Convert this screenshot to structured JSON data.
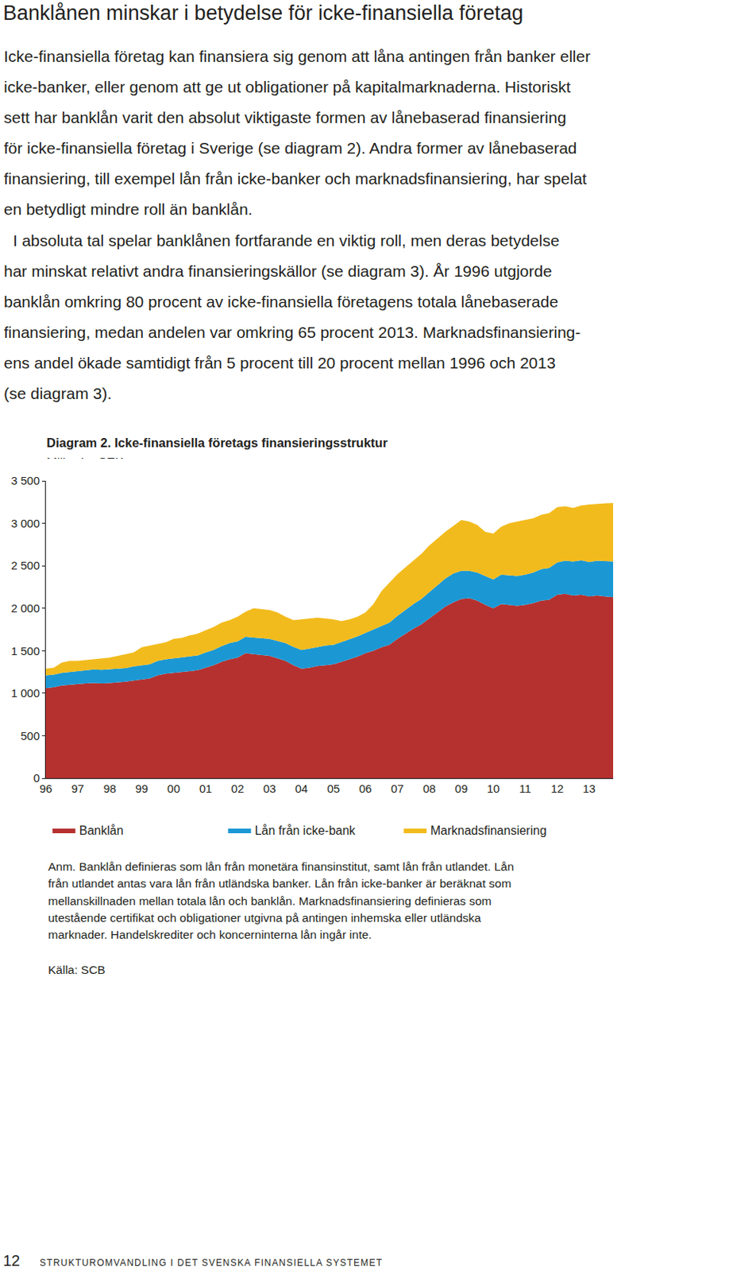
{
  "heading": "Banklånen minskar i betydelse för icke-finansiella företag",
  "paragraphs": [
    [
      "Icke-finansiella företag kan finansiera sig genom att låna antingen från banker eller",
      "icke-banker, eller genom att ge ut obligationer på kapitalmarknaderna. Historiskt",
      "sett har banklån varit den absolut viktigaste formen av lånebaserad finansiering",
      "för icke-finansiella företag i Sverige (se diagram 2). Andra former av lånebaserad",
      "finansiering, till exempel lån från icke-banker och marknadsfinansiering, har spelat",
      "en betydligt mindre roll än banklån."
    ],
    [
      "I absoluta tal spelar banklånen fortfarande en viktig roll, men deras betydelse",
      "har minskat relativt andra finansieringskällor (se diagram 3). År 1996 utgjorde",
      "banklån omkring 80 procent av icke-finansiella företagens totala lånebaserade",
      "finansiering, medan andelen var omkring 65 procent 2013. Marknadsfinansiering-",
      "ens andel ökade samtidigt från 5 procent till 20 procent mellan 1996 och 2013",
      "(se diagram 3)."
    ]
  ],
  "chart_data": {
    "type": "area",
    "title": "Diagram 2. Icke-finansiella företags finansieringsstruktur",
    "subtitle": "Miljarder SEK",
    "categories": [
      "96",
      null,
      null,
      null,
      "97",
      null,
      null,
      null,
      "98",
      null,
      null,
      null,
      "99",
      null,
      null,
      null,
      "00",
      null,
      null,
      null,
      "01",
      null,
      null,
      null,
      "02",
      null,
      null,
      null,
      "03",
      null,
      null,
      null,
      "04",
      null,
      null,
      null,
      "05",
      null,
      null,
      null,
      "06",
      null,
      null,
      null,
      "07",
      null,
      null,
      null,
      "08",
      null,
      null,
      null,
      "09",
      null,
      null,
      null,
      "10",
      null,
      null,
      null,
      "11",
      null,
      null,
      null,
      "12",
      null,
      null,
      null,
      "13",
      null,
      null,
      null
    ],
    "series": [
      {
        "name": "Banklån",
        "color": "#b5312f",
        "values": [
          1060,
          1070,
          1090,
          1100,
          1110,
          1115,
          1120,
          1115,
          1120,
          1125,
          1135,
          1150,
          1160,
          1175,
          1210,
          1230,
          1240,
          1250,
          1260,
          1270,
          1300,
          1330,
          1370,
          1400,
          1420,
          1470,
          1460,
          1450,
          1440,
          1410,
          1380,
          1330,
          1290,
          1300,
          1320,
          1330,
          1340,
          1370,
          1400,
          1430,
          1470,
          1500,
          1540,
          1570,
          1640,
          1700,
          1760,
          1810,
          1880,
          1950,
          2020,
          2070,
          2110,
          2120,
          2090,
          2040,
          2000,
          2050,
          2040,
          2030,
          2040,
          2060,
          2090,
          2100,
          2160,
          2170,
          2150,
          2160,
          2140,
          2150,
          2140,
          2130
        ]
      },
      {
        "name": "Lån från icke-bank",
        "color": "#1b98d4",
        "values": [
          150,
          150,
          150,
          150,
          155,
          155,
          160,
          160,
          160,
          160,
          160,
          165,
          165,
          165,
          170,
          170,
          170,
          170,
          175,
          175,
          180,
          180,
          185,
          190,
          190,
          195,
          195,
          200,
          200,
          205,
          210,
          215,
          220,
          225,
          225,
          230,
          230,
          230,
          235,
          240,
          240,
          245,
          250,
          260,
          270,
          280,
          290,
          300,
          310,
          320,
          330,
          340,
          330,
          320,
          330,
          340,
          340,
          345,
          350,
          350,
          355,
          360,
          370,
          375,
          380,
          390,
          400,
          405,
          405,
          410,
          415,
          420
        ]
      },
      {
        "name": "Marknadsfinansiering",
        "color": "#f2bb1d",
        "values": [
          80,
          80,
          120,
          130,
          115,
          120,
          120,
          135,
          140,
          155,
          165,
          165,
          215,
          220,
          200,
          200,
          230,
          230,
          245,
          255,
          260,
          270,
          275,
          270,
          290,
          295,
          345,
          340,
          340,
          335,
          310,
          315,
          360,
          355,
          345,
          320,
          300,
          250,
          235,
          230,
          240,
          305,
          410,
          470,
          490,
          500,
          510,
          530,
          550,
          550,
          550,
          560,
          600,
          580,
          560,
          520,
          540,
          565,
          610,
          640,
          645,
          640,
          640,
          645,
          650,
          640,
          630,
          645,
          675,
          670,
          680,
          690
        ]
      }
    ],
    "ylim": [
      0,
      3500
    ],
    "yticks": [
      0,
      500,
      {
        "value": 1000,
        "label": "1 000"
      },
      {
        "value": 1500,
        "label": "1 500"
      },
      {
        "value": 2000,
        "label": "2 000"
      },
      {
        "value": 2500,
        "label": "2 500"
      },
      {
        "value": 3000,
        "label": "3 000"
      },
      {
        "value": 3500,
        "label": "3 500"
      }
    ],
    "stacked": true,
    "grid": false,
    "legend": "bottom"
  },
  "note": [
    "Anm. Banklån definieras som lån från monetära finansinstitut, samt lån från utlandet. Lån",
    "från utlandet antas vara lån från utländska banker. Lån från icke-banker är beräknat som",
    "mellanskillnaden mellan totala lån och banklån. Marknadsfinansiering definieras som",
    "utestående certifikat och obligationer utgivna på antingen inhemska eller utländska",
    "marknader. Handelskrediter och koncerninterna lån ingår inte."
  ],
  "source": "Källa: SCB",
  "footer": {
    "page": 12,
    "text": "STRUKTUROMVANDLING I DET SVENSKA FINANSIELLA SYSTEMET"
  }
}
